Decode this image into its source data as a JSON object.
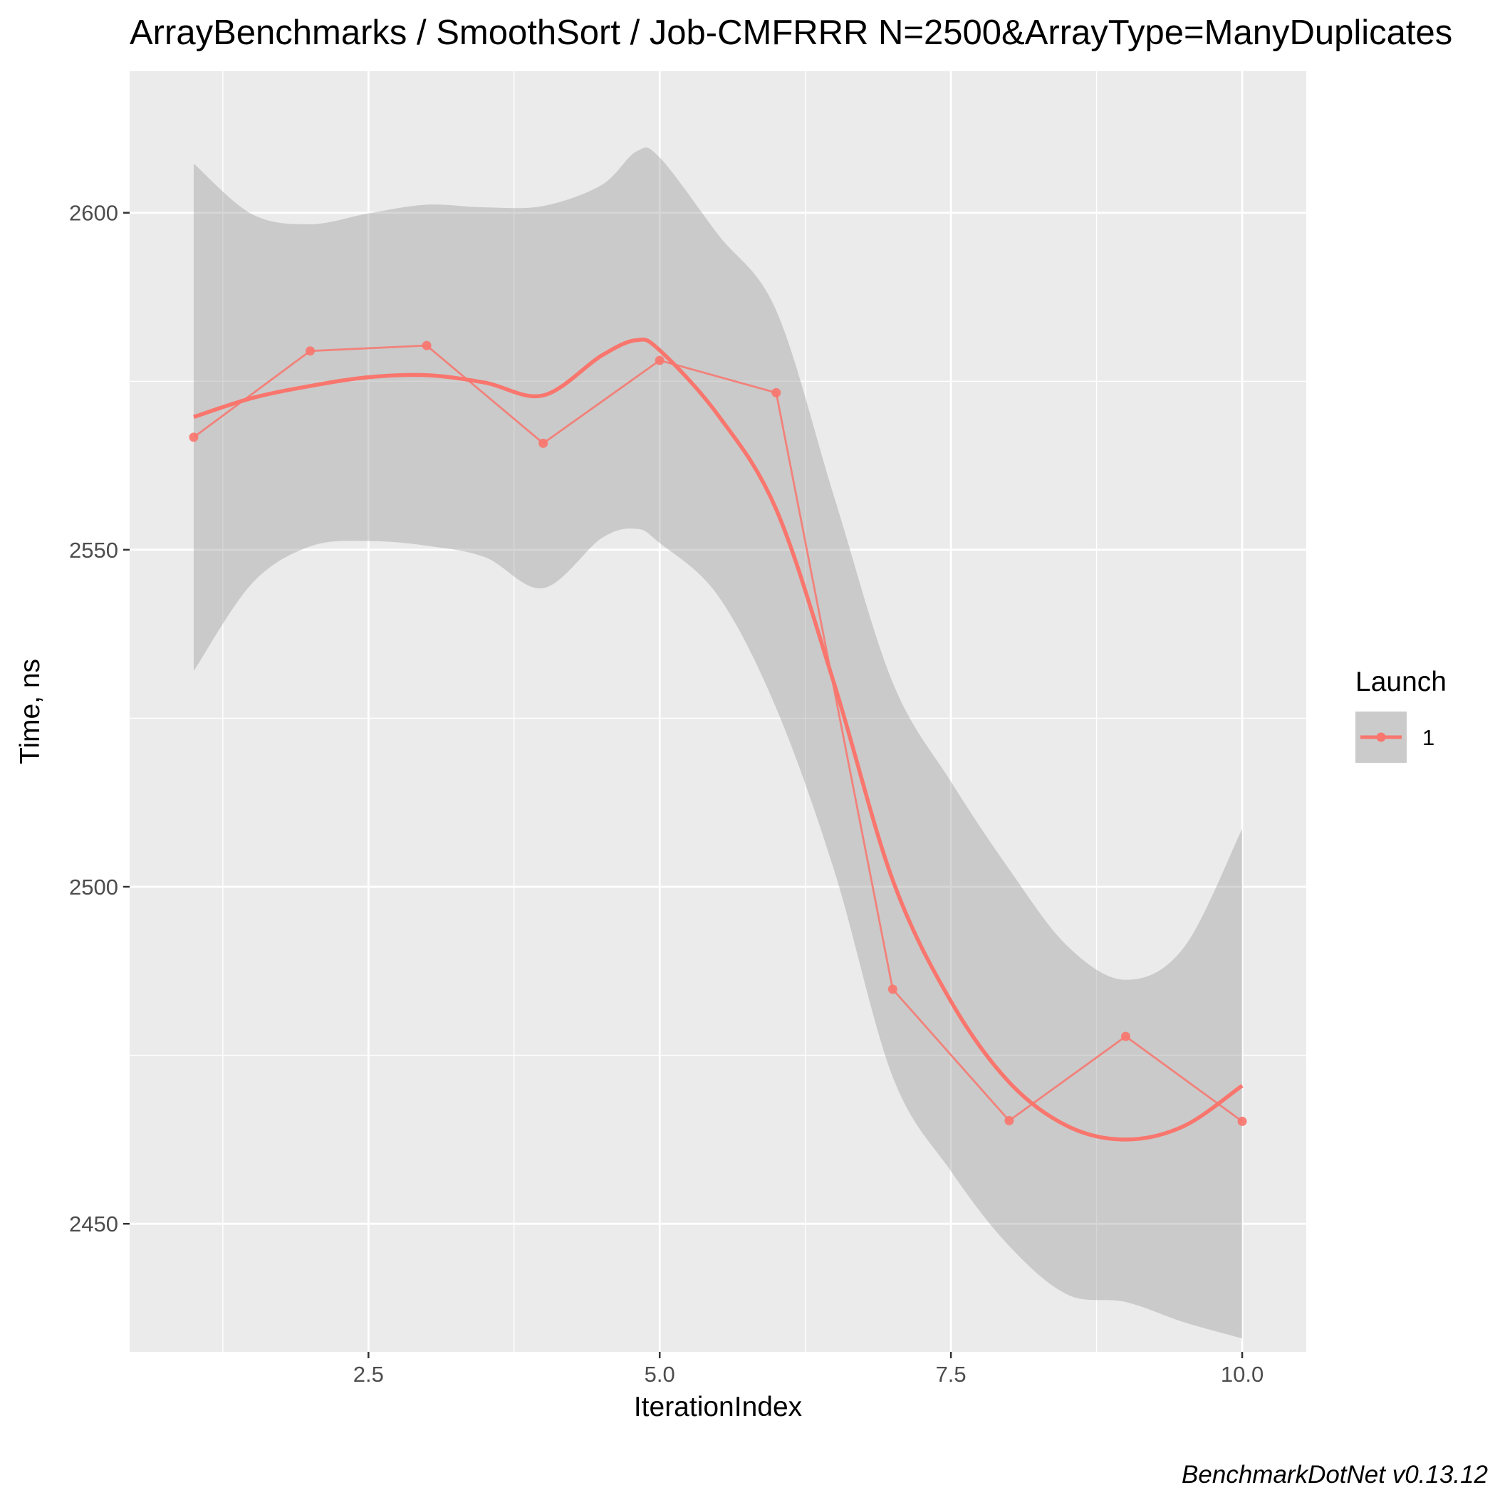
{
  "chart_data": {
    "type": "line",
    "title": "ArrayBenchmarks / SmoothSort / Job-CMFRRR N=2500&ArrayType=ManyDuplicates",
    "xlabel": "IterationIndex",
    "ylabel": "Time, ns",
    "caption": "BenchmarkDotNet v0.13.12",
    "xlim": [
      0.45,
      10.55
    ],
    "ylim": [
      2431,
      2621
    ],
    "x_ticks": [
      2.5,
      5.0,
      7.5,
      10.0
    ],
    "x_tick_labels": [
      "2.5",
      "5.0",
      "7.5",
      "10.0"
    ],
    "y_ticks": [
      2450,
      2500,
      2550,
      2600
    ],
    "y_tick_labels": [
      "2450",
      "2500",
      "2550",
      "2600"
    ],
    "grid": true,
    "legend": {
      "title": "Launch",
      "position": "right",
      "entries": [
        "1"
      ]
    },
    "series": [
      {
        "name": "1",
        "color": "#F8766D",
        "x": [
          1,
          2,
          3,
          4,
          5,
          6,
          7,
          8,
          9,
          10
        ],
        "values": [
          2566.7,
          2579.5,
          2580.3,
          2565.8,
          2578.1,
          2573.3,
          2484.8,
          2465.3,
          2477.8,
          2465.2
        ]
      }
    ],
    "smooth": {
      "name": "1",
      "x": [
        1.0,
        1.5,
        2.0,
        2.5,
        3.0,
        3.5,
        4.0,
        4.5,
        4.8,
        5.0,
        5.5,
        6.0,
        6.5,
        7.0,
        7.5,
        8.0,
        8.5,
        9.0,
        9.5,
        10.0
      ],
      "values": [
        2569.7,
        2572.5,
        2574.3,
        2575.6,
        2575.9,
        2574.8,
        2572.9,
        2578.8,
        2581.1,
        2579.6,
        2570.0,
        2556.0,
        2530.0,
        2501.0,
        2483.0,
        2471.0,
        2464.5,
        2462.5,
        2464.5,
        2470.5
      ],
      "ci_upper": [
        2607.3,
        2599.8,
        2598.3,
        2599.9,
        2601.2,
        2600.8,
        2601.0,
        2604.1,
        2609.1,
        2608.2,
        2596.8,
        2585.5,
        2557.7,
        2530.3,
        2515.6,
        2502.6,
        2491.2,
        2486.2,
        2491.0,
        2508.6
      ],
      "ci_lower": [
        2532.0,
        2545.0,
        2550.5,
        2551.3,
        2550.6,
        2548.9,
        2544.3,
        2551.7,
        2553.1,
        2551.0,
        2543.2,
        2526.5,
        2502.3,
        2471.8,
        2457.8,
        2446.7,
        2439.5,
        2438.4,
        2435.4,
        2433.0
      ]
    }
  }
}
